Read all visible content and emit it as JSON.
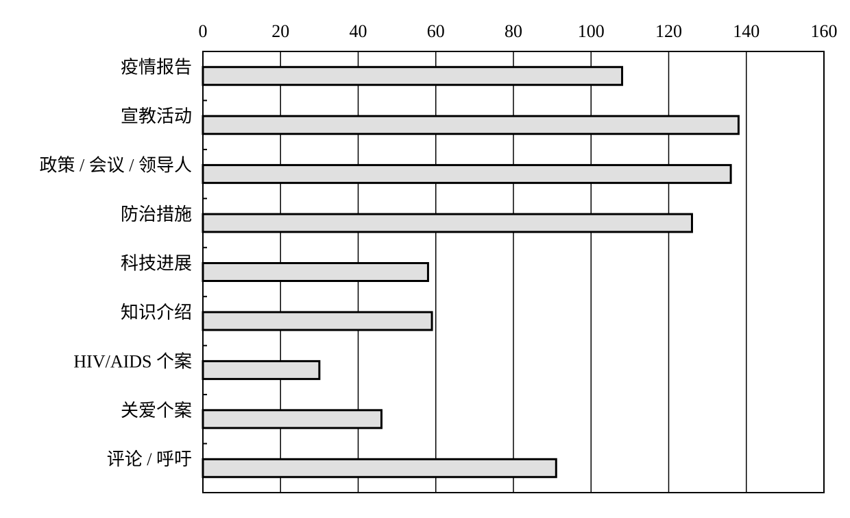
{
  "chart_data": {
    "type": "hbar",
    "categories": [
      "疫情报告",
      "宣教活动",
      "政策 / 会议 / 领导人",
      "防治措施",
      "科技进展",
      "知识介绍",
      "HIV/AIDS 个案",
      "关爱个案",
      "评论 / 呼吁"
    ],
    "values": [
      108,
      138,
      136,
      126,
      58,
      59,
      30,
      46,
      91
    ],
    "color": "#e0e0e0",
    "xlim": [
      0,
      160
    ],
    "xticks": [
      0,
      20,
      40,
      60,
      80,
      100,
      120,
      140,
      160
    ],
    "grid": true
  }
}
